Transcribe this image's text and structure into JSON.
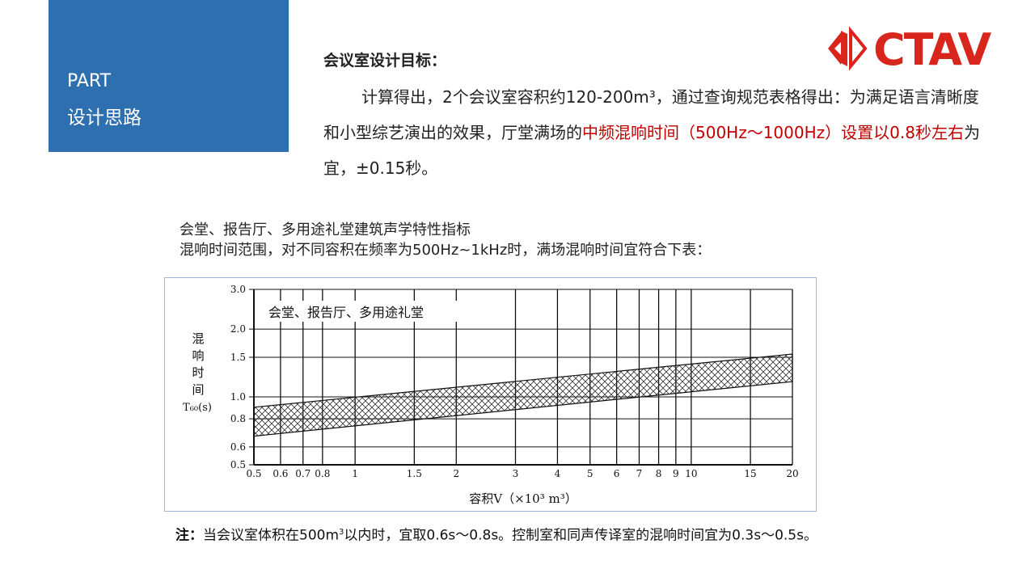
{
  "part_box": {
    "line1": "PART",
    "line2": "设计思路"
  },
  "logo": {
    "text": "CTAV",
    "color": "#d9261c"
  },
  "heading": "会议室设计目标：",
  "paragraph": {
    "part1": "计算得出，2个会议室容积约120-200m³，通过查询规范表格得出：为满足语言清晰度和小型综艺演出的效果，厅堂满场的",
    "highlight": "中频混响时间（500Hz～1000Hz）设置以0.8秒左右",
    "part2": "为宜，±0.15秒。",
    "highlight_color": "#c00000"
  },
  "subtitle1": "会堂、报告厅、多用途礼堂建筑声学特性指标",
  "subtitle2": "混响时间范围，对不同容积在频率为500Hz~1kHz时，满场混响时间宜符合下表：",
  "note": {
    "label": "注：",
    "text_before_sup": "当会议室体积在500m",
    "sup": "3",
    "text_after_sup": "以内时，宜取0.6s～0.8s。控制室和同声传译室的混响时间宜为0.3s～0.5s。"
  },
  "chart_data": {
    "type": "area",
    "title": "会堂、报告厅、多用途礼堂",
    "xlabel": "容积V（×10³ m³）",
    "ylabel": [
      "混",
      "响",
      "时",
      "间",
      "T₆₀(s)"
    ],
    "x_scale": "log",
    "y_scale": "log",
    "xlim": [
      0.5,
      20
    ],
    "ylim": [
      0.5,
      3.0
    ],
    "x_ticks": [
      {
        "v": 0.5,
        "label": "0.5"
      },
      {
        "v": 0.6,
        "label": "0.6"
      },
      {
        "v": 0.7,
        "label": "0.7"
      },
      {
        "v": 0.8,
        "label": "0.8"
      },
      {
        "v": 1,
        "label": "1"
      },
      {
        "v": 1.5,
        "label": "1.5"
      },
      {
        "v": 2,
        "label": "2"
      },
      {
        "v": 3,
        "label": "3"
      },
      {
        "v": 4,
        "label": "4"
      },
      {
        "v": 5,
        "label": "5"
      },
      {
        "v": 6,
        "label": "6"
      },
      {
        "v": 7,
        "label": "7"
      },
      {
        "v": 8,
        "label": "8"
      },
      {
        "v": 9,
        "label": "9"
      },
      {
        "v": 10,
        "label": "10"
      },
      {
        "v": 15,
        "label": "15"
      },
      {
        "v": 20,
        "label": "20"
      }
    ],
    "y_ticks": [
      {
        "v": 0.5,
        "label": "0.5"
      },
      {
        "v": 0.6,
        "label": "0.6"
      },
      {
        "v": 0.8,
        "label": "0.8"
      },
      {
        "v": 1.0,
        "label": "1.0"
      },
      {
        "v": 1.5,
        "label": "1.5"
      },
      {
        "v": 2.0,
        "label": "2.0"
      },
      {
        "v": 3.0,
        "label": "3.0"
      }
    ],
    "band": {
      "x": [
        0.5,
        20
      ],
      "upper": [
        0.9,
        1.55
      ],
      "lower": [
        0.67,
        1.17
      ]
    },
    "grid": true
  }
}
